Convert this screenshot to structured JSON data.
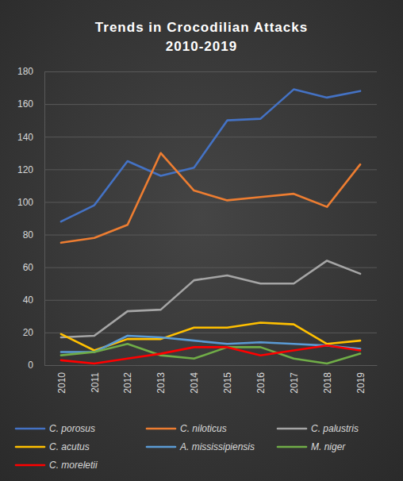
{
  "chart_data": {
    "type": "line",
    "title": "Trends in Crocodilian Attacks",
    "subtitle": "2010-2019",
    "categories": [
      "2010",
      "2011",
      "2012",
      "2013",
      "2014",
      "2015",
      "2016",
      "2017",
      "2018",
      "2019"
    ],
    "series": [
      {
        "name": "C. porosus",
        "color": "#4472c4",
        "values": [
          88,
          98,
          125,
          116,
          121,
          150,
          151,
          169,
          164,
          168
        ]
      },
      {
        "name": "C. niloticus",
        "color": "#ed7d31",
        "values": [
          75,
          78,
          86,
          130,
          107,
          101,
          103,
          105,
          97,
          123
        ]
      },
      {
        "name": "C. palustris",
        "color": "#a5a5a5",
        "values": [
          17,
          18,
          33,
          34,
          52,
          55,
          50,
          50,
          64,
          56
        ]
      },
      {
        "name": "C. acutus",
        "color": "#ffc000",
        "values": [
          19,
          9,
          16,
          16,
          23,
          23,
          26,
          25,
          13,
          15
        ]
      },
      {
        "name": "A. mississipiensis",
        "color": "#5b9bd5",
        "values": [
          8,
          8,
          18,
          17,
          15,
          13,
          14,
          13,
          12,
          10
        ]
      },
      {
        "name": "M. niger",
        "color": "#70ad47",
        "values": [
          6,
          8,
          13,
          6,
          4,
          11,
          11,
          4,
          1,
          7
        ]
      },
      {
        "name": "C. moreletii",
        "color": "#ff0000",
        "values": [
          3,
          1,
          4,
          7,
          11,
          11,
          6,
          9,
          12,
          9
        ]
      }
    ],
    "ylim": [
      0,
      180
    ],
    "yticks": [
      0,
      20,
      40,
      60,
      80,
      100,
      120,
      140,
      160,
      180
    ],
    "grid": true,
    "legend": "bottom"
  }
}
